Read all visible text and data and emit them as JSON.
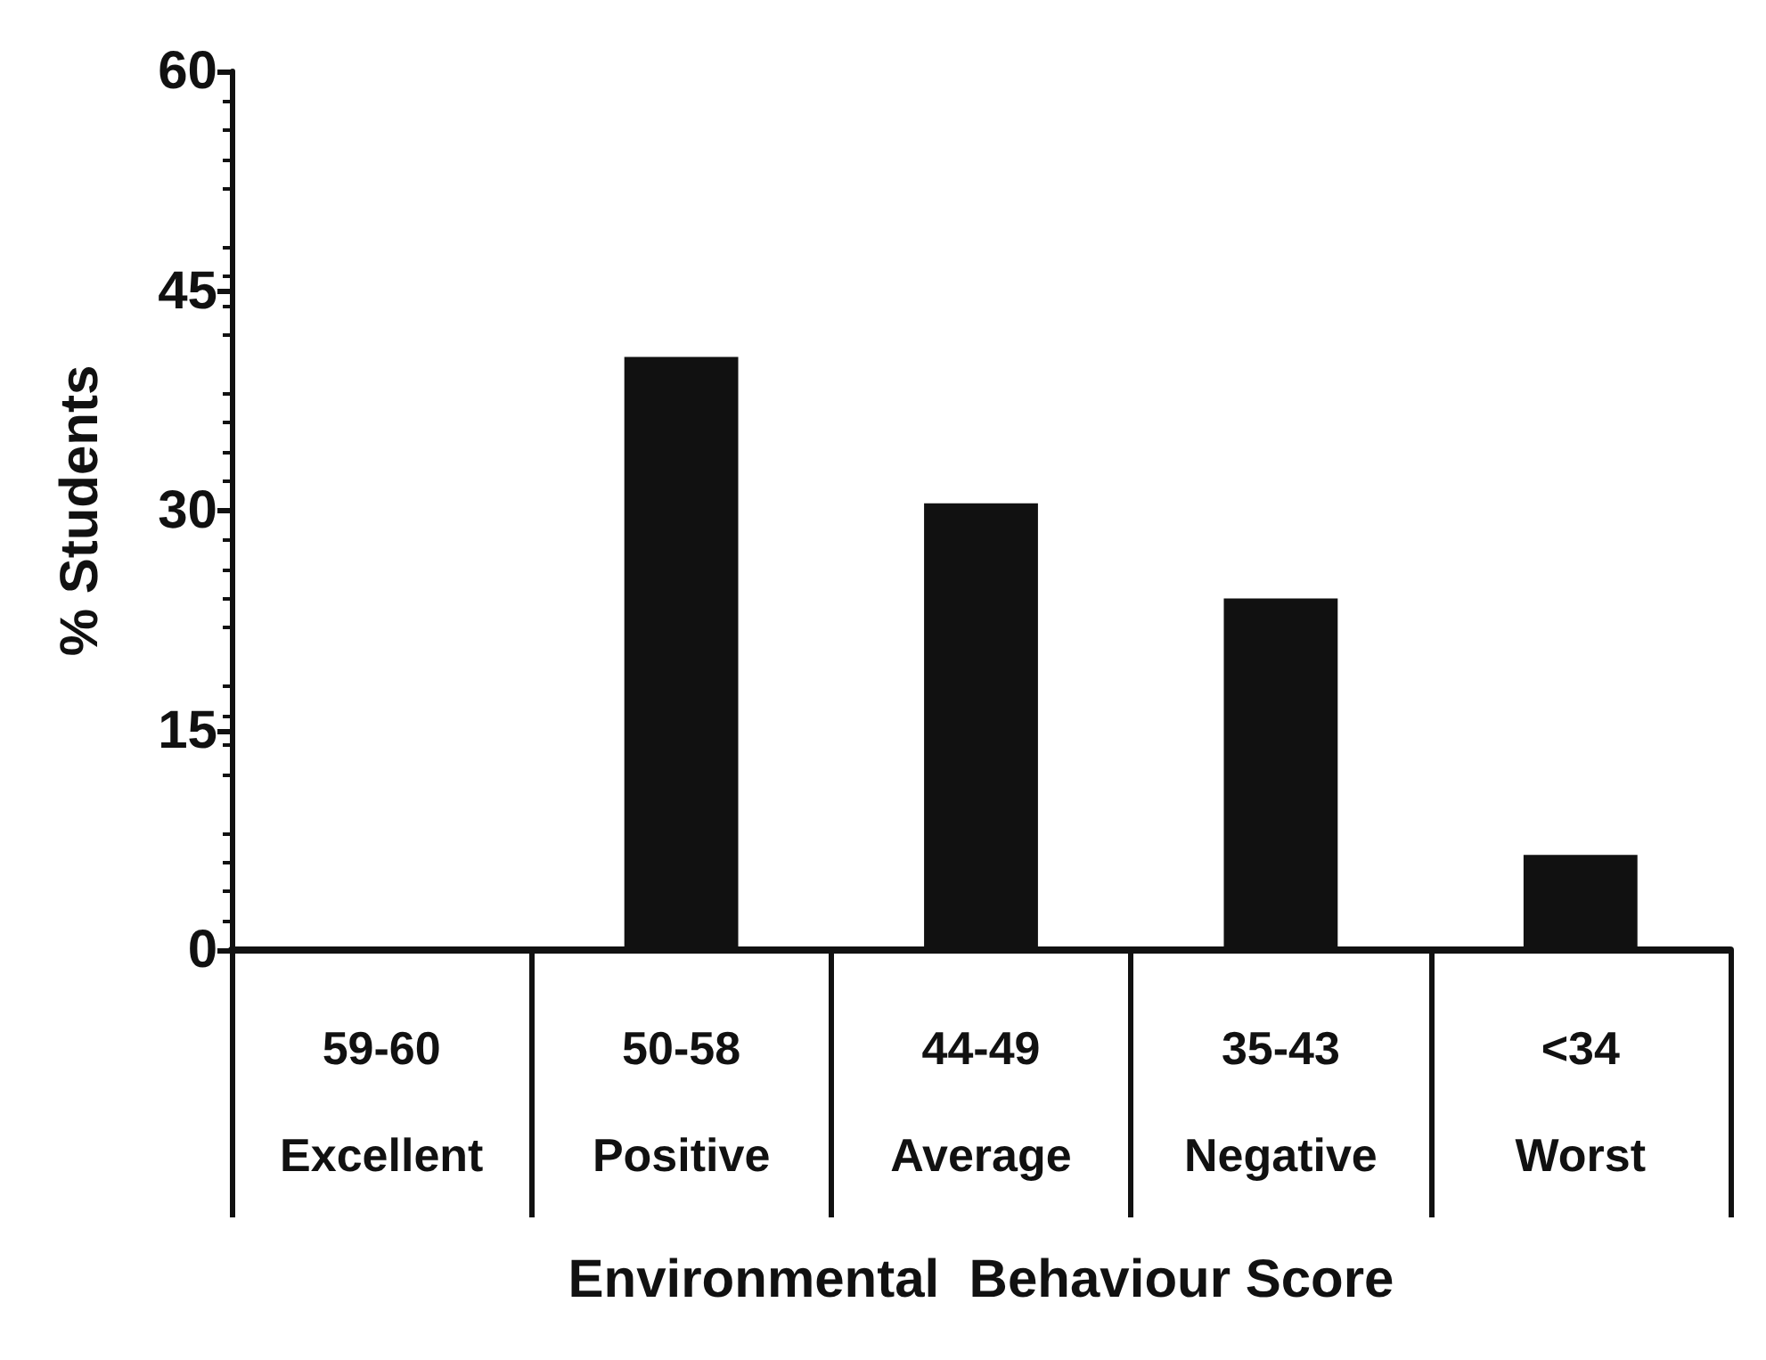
{
  "chart_data": {
    "type": "bar",
    "xlabel": "Environmental  Behaviour Score",
    "ylabel": "% Students",
    "categories": [
      "59-60\nExcellent",
      "50-58\nPositive",
      "44-49\nAverage",
      "35-43\nNegative",
      "<34\nWorst"
    ],
    "values": [
      0,
      40.5,
      30.5,
      24,
      6.5
    ],
    "color": "#111111",
    "ylim": [
      0,
      60
    ],
    "yticks": [
      0,
      15,
      30,
      45,
      60
    ],
    "grid": false
  }
}
